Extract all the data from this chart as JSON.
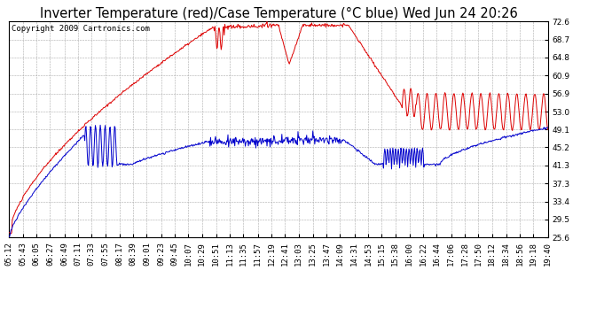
{
  "title": "Inverter Temperature (red)/Case Temperature (°C blue) Wed Jun 24 20:26",
  "copyright": "Copyright 2009 Cartronics.com",
  "yticks": [
    25.6,
    29.5,
    33.4,
    37.3,
    41.3,
    45.2,
    49.1,
    53.0,
    56.9,
    60.9,
    64.8,
    68.7,
    72.6
  ],
  "ylim": [
    25.6,
    72.6
  ],
  "bg_color": "#ffffff",
  "plot_bg_color": "#ffffff",
  "grid_color": "#aaaaaa",
  "red_color": "#dd0000",
  "blue_color": "#0000cc",
  "title_fontsize": 10.5,
  "tick_fontsize": 6.5,
  "copyright_fontsize": 6.5,
  "xtick_labels": [
    "05:12",
    "05:43",
    "06:05",
    "06:27",
    "06:49",
    "07:11",
    "07:33",
    "07:55",
    "08:17",
    "08:39",
    "09:01",
    "09:23",
    "09:45",
    "10:07",
    "10:29",
    "10:51",
    "11:13",
    "11:35",
    "11:57",
    "12:19",
    "12:41",
    "13:03",
    "13:25",
    "13:47",
    "14:09",
    "14:31",
    "14:53",
    "15:15",
    "15:38",
    "16:00",
    "16:22",
    "16:44",
    "17:06",
    "17:28",
    "17:50",
    "18:12",
    "18:34",
    "18:56",
    "19:18",
    "19:40"
  ]
}
